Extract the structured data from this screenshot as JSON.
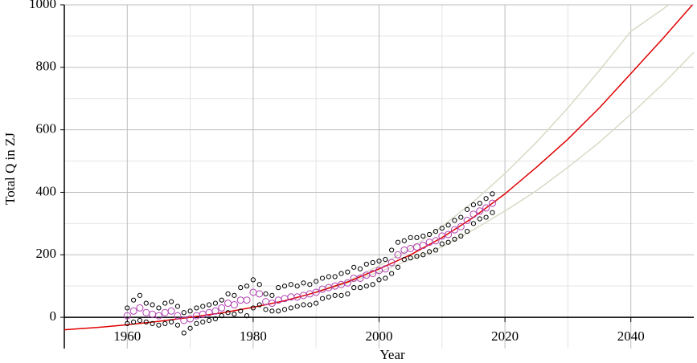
{
  "chart_data": {
    "type": "scatter",
    "x_label": "Year",
    "y_label": "Total Q in ZJ",
    "xlim": [
      1950,
      2050
    ],
    "ylim": [
      -100,
      1000
    ],
    "xticks": [
      1960,
      1980,
      2000,
      2020,
      2040
    ],
    "yticks": [
      0,
      200,
      400,
      600,
      800,
      1000
    ],
    "grid": true,
    "series": [
      {
        "mode": "line",
        "color": "#d9d9c6",
        "x": [
          1990,
          1995,
          2000,
          2005,
          2010,
          2015,
          2020,
          2025,
          2030,
          2035,
          2040,
          2045,
          2046
        ],
        "values": [
          82,
          115,
          165,
          220,
          290,
          370,
          460,
          560,
          670,
          790,
          915,
          985,
          1000
        ]
      },
      {
        "mode": "line",
        "color": "#d9d9c6",
        "x": [
          1990,
          1995,
          2000,
          2005,
          2010,
          2015,
          2020,
          2025,
          2030,
          2035,
          2040,
          2045,
          2050
        ],
        "values": [
          80,
          110,
          145,
          185,
          225,
          280,
          340,
          405,
          480,
          560,
          650,
          745,
          848
        ]
      },
      {
        "mode": "line",
        "color": "#e00000",
        "x": [
          1950,
          1955,
          1960,
          1965,
          1970,
          1975,
          1980,
          1985,
          1990,
          1995,
          2000,
          2005,
          2010,
          2015,
          2020,
          2025,
          2030,
          2035,
          2040,
          2045,
          2050
        ],
        "values": [
          -40,
          -33,
          -24,
          -13,
          0,
          14,
          32,
          53,
          80,
          113,
          155,
          200,
          255,
          320,
          395,
          480,
          570,
          670,
          780,
          890,
          1005
        ]
      },
      {
        "mode": "markers",
        "color": "#000000",
        "x": [
          1960,
          1961,
          1962,
          1963,
          1964,
          1965,
          1966,
          1967,
          1968,
          1969,
          1970,
          1971,
          1972,
          1973,
          1974,
          1975,
          1976,
          1977,
          1978,
          1979,
          1980,
          1981,
          1982,
          1983,
          1984,
          1985,
          1986,
          1987,
          1988,
          1989,
          1990,
          1991,
          1992,
          1993,
          1994,
          1995,
          1996,
          1997,
          1998,
          1999,
          2000,
          2001,
          2002,
          2003,
          2004,
          2005,
          2006,
          2007,
          2008,
          2009,
          2010,
          2011,
          2012,
          2013,
          2014,
          2015,
          2016,
          2017,
          2018
        ],
        "values": [
          30,
          55,
          70,
          45,
          40,
          30,
          45,
          50,
          35,
          15,
          20,
          30,
          35,
          40,
          45,
          55,
          75,
          70,
          95,
          100,
          120,
          105,
          75,
          70,
          95,
          100,
          105,
          100,
          110,
          105,
          115,
          125,
          130,
          130,
          140,
          145,
          160,
          155,
          170,
          175,
          180,
          185,
          215,
          240,
          245,
          255,
          255,
          260,
          265,
          275,
          285,
          295,
          310,
          320,
          345,
          360,
          365,
          380,
          395
        ]
      },
      {
        "mode": "markers",
        "color": "#000000",
        "x": [
          1960,
          1961,
          1962,
          1963,
          1964,
          1965,
          1966,
          1967,
          1968,
          1969,
          1970,
          1971,
          1972,
          1973,
          1974,
          1975,
          1976,
          1977,
          1978,
          1979,
          1980,
          1981,
          1982,
          1983,
          1984,
          1985,
          1986,
          1987,
          1988,
          1989,
          1990,
          1991,
          1992,
          1993,
          1994,
          1995,
          1996,
          1997,
          1998,
          1999,
          2000,
          2001,
          2002,
          2003,
          2004,
          2005,
          2006,
          2007,
          2008,
          2009,
          2010,
          2011,
          2012,
          2013,
          2014,
          2015,
          2016,
          2017,
          2018
        ],
        "values": [
          -20,
          -15,
          -10,
          -15,
          -20,
          -25,
          -20,
          -15,
          -25,
          -50,
          -35,
          -20,
          -15,
          -10,
          -5,
          5,
          15,
          10,
          20,
          5,
          30,
          40,
          25,
          20,
          20,
          25,
          30,
          35,
          40,
          40,
          45,
          60,
          65,
          70,
          70,
          75,
          95,
          95,
          100,
          105,
          120,
          125,
          140,
          160,
          185,
          190,
          195,
          200,
          210,
          215,
          235,
          240,
          250,
          260,
          275,
          300,
          315,
          320,
          335
        ]
      },
      {
        "mode": "markers",
        "color": "#b040b0",
        "x": [
          1960,
          1961,
          1962,
          1963,
          1964,
          1965,
          1966,
          1967,
          1968,
          1969,
          1970,
          1971,
          1972,
          1973,
          1974,
          1975,
          1976,
          1977,
          1978,
          1979,
          1980,
          1981,
          1982,
          1983,
          1984,
          1985,
          1986,
          1987,
          1988,
          1989,
          1990,
          1991,
          1992,
          1993,
          1994,
          1995,
          1996,
          1997,
          1998,
          1999,
          2000,
          2001,
          2002,
          2003,
          2004,
          2005,
          2006,
          2007,
          2008,
          2009,
          2010,
          2011,
          2012,
          2013,
          2014,
          2015,
          2016,
          2017,
          2018
        ],
        "values": [
          5,
          20,
          30,
          15,
          10,
          5,
          15,
          20,
          5,
          -10,
          -5,
          5,
          10,
          15,
          20,
          30,
          45,
          40,
          55,
          55,
          80,
          75,
          50,
          45,
          55,
          60,
          65,
          65,
          70,
          75,
          80,
          90,
          95,
          100,
          105,
          110,
          125,
          125,
          135,
          140,
          150,
          155,
          175,
          200,
          215,
          220,
          225,
          230,
          240,
          245,
          260,
          265,
          280,
          290,
          310,
          330,
          340,
          350,
          365
        ]
      }
    ]
  }
}
